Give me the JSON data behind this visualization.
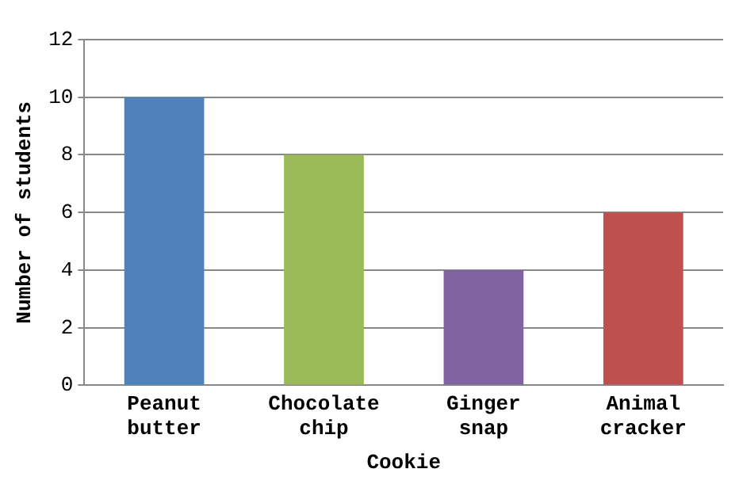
{
  "chart_data": {
    "type": "bar",
    "xlabel": "Cookie",
    "ylabel": "Number of students",
    "categories": [
      "Peanut butter",
      "Chocolate chip",
      "Ginger snap",
      "Animal cracker"
    ],
    "values": [
      10,
      8,
      4,
      6
    ],
    "colors": [
      "#4f81bd",
      "#9bbb59",
      "#8064a2",
      "#c0504d"
    ],
    "ylim": [
      0,
      12
    ],
    "yticks": [
      0,
      2,
      4,
      6,
      8,
      10,
      12
    ],
    "grid": "y",
    "legend": false
  }
}
